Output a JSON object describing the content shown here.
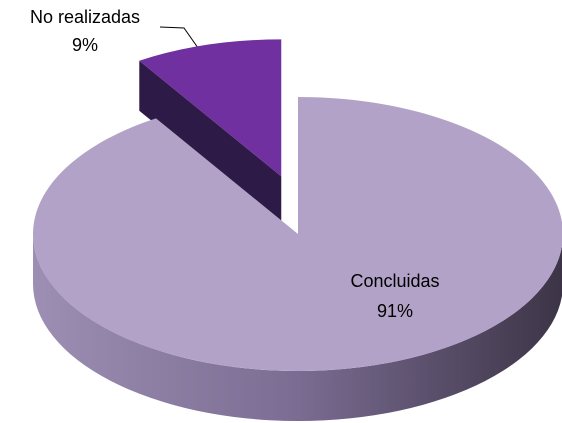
{
  "chart_data": {
    "type": "pie3d",
    "categories": [
      "Concluidas",
      "No realizadas"
    ],
    "values": [
      91,
      9
    ],
    "value_labels": [
      "91%",
      "9%"
    ],
    "colors": [
      "#b3a2c7",
      "#7030a0"
    ],
    "explode": [
      false,
      true
    ]
  }
}
